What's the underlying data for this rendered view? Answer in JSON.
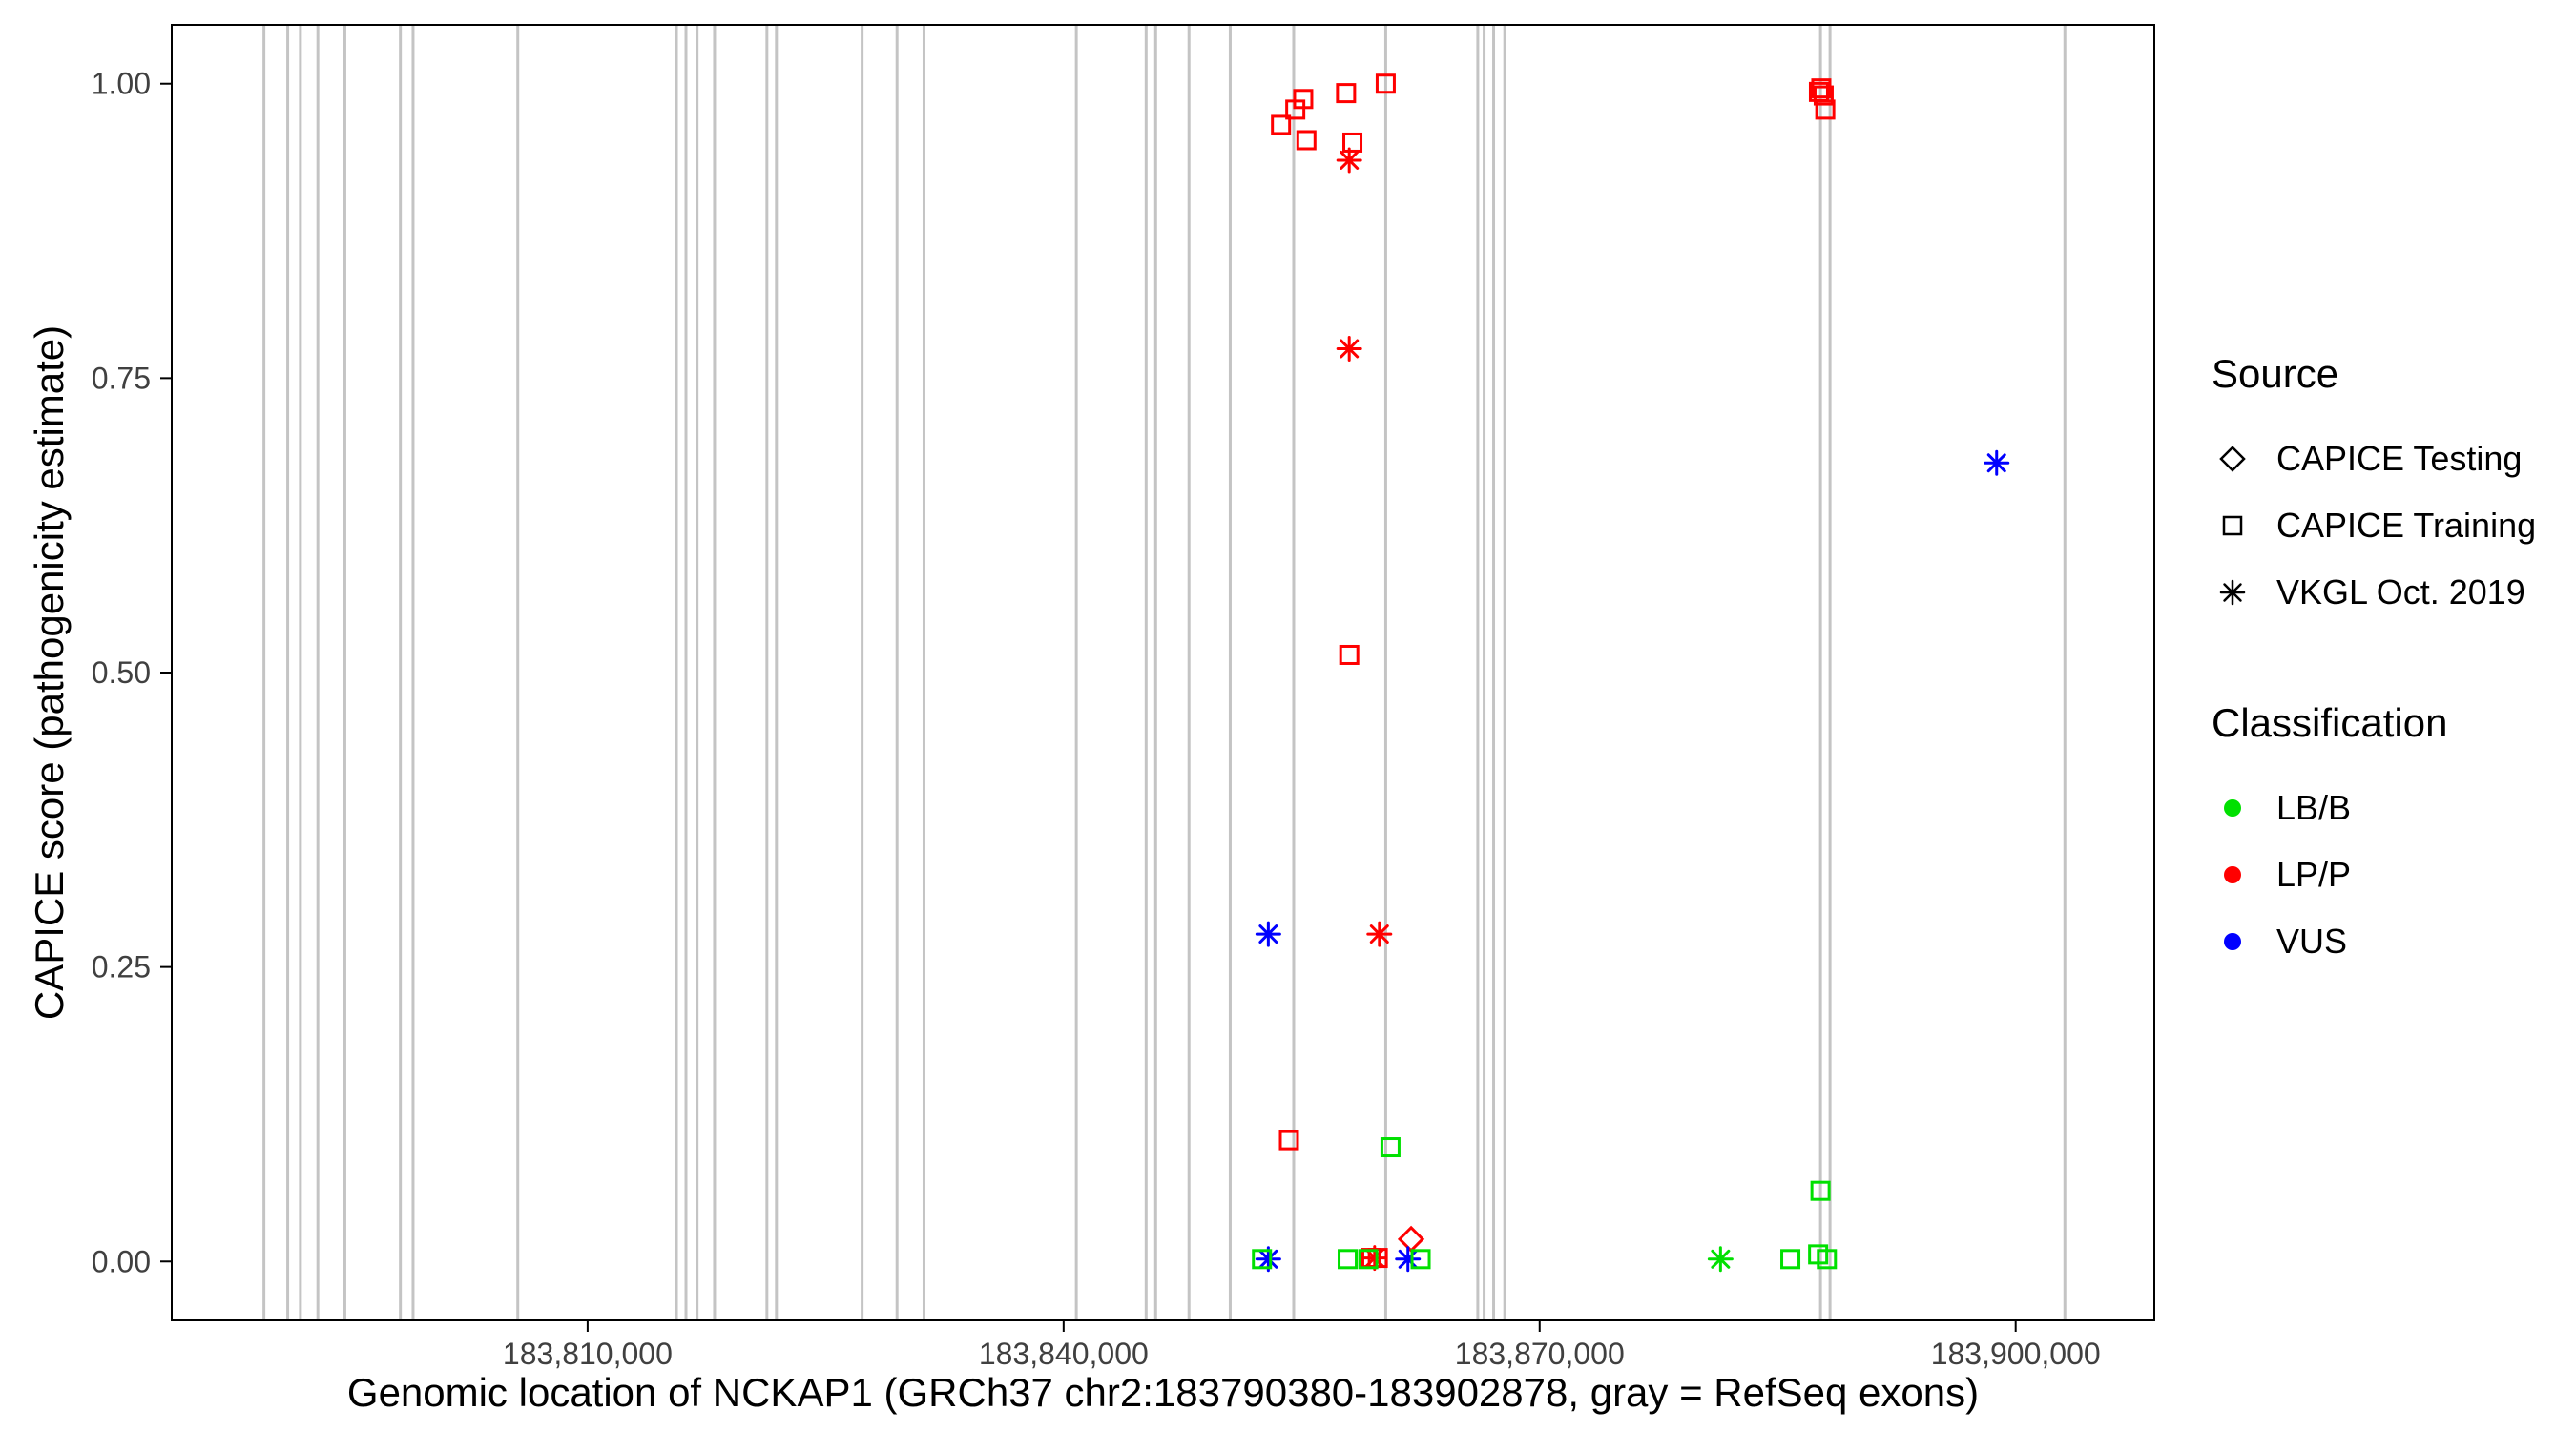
{
  "legend": {
    "source_title": "Source",
    "source_items": [
      {
        "label": "CAPICE Testing",
        "shape": "diamond"
      },
      {
        "label": "CAPICE Training",
        "shape": "square"
      },
      {
        "label": "VKGL Oct. 2019",
        "shape": "asterisk"
      }
    ],
    "classification_title": "Classification",
    "classification_items": [
      {
        "label": "LB/B",
        "color": "#00E000"
      },
      {
        "label": "LP/P",
        "color": "#FF0000"
      },
      {
        "label": "VUS",
        "color": "#0000FF"
      }
    ]
  },
  "chart_data": {
    "type": "scatter",
    "title": "",
    "xlabel": "Genomic location of NCKAP1 (GRCh37 chr2:183790380-183902878, gray = RefSeq exons)",
    "ylabel": "CAPICE score (pathogenicity estimate)",
    "xlim": [
      183783790,
      183908737
    ],
    "ylim": [
      -0.05,
      1.05
    ],
    "grid": false,
    "x_ticks": [
      {
        "value": 183810000,
        "label": "183,810,000"
      },
      {
        "value": 183840000,
        "label": "183,840,000"
      },
      {
        "value": 183870000,
        "label": "183,870,000"
      },
      {
        "value": 183900000,
        "label": "183,900,000"
      }
    ],
    "y_ticks": [
      {
        "value": 0.0,
        "label": "0.00"
      },
      {
        "value": 0.25,
        "label": "0.25"
      },
      {
        "value": 0.5,
        "label": "0.50"
      },
      {
        "value": 0.75,
        "label": "0.75"
      },
      {
        "value": 1.0,
        "label": "1.00"
      }
    ],
    "exon_color": "#C4C4C4",
    "exon_note": "gray vertical lines = RefSeq exons",
    "exons_x": [
      183789600,
      183791100,
      183791900,
      183793000,
      183794700,
      183798200,
      183799000,
      183805600,
      183815600,
      183816200,
      183816900,
      183818000,
      183821300,
      183821900,
      183827300,
      183829500,
      183831200,
      183840800,
      183845200,
      183845800,
      183847900,
      183850500,
      183854500,
      183860300,
      183866100,
      183866500,
      183867100,
      183867800,
      183887700,
      183888300,
      183903100
    ],
    "colors": {
      "LB/B": "#00E000",
      "LP/P": "#FF0000",
      "VUS": "#0000FF"
    },
    "shapes": {
      "CAPICE Testing": "diamond",
      "CAPICE Training": "square",
      "VKGL Oct. 2019": "asterisk"
    },
    "points": [
      {
        "x": 183853700,
        "y": 0.965,
        "source": "CAPICE Training",
        "classification": "LP/P"
      },
      {
        "x": 183854600,
        "y": 0.978,
        "source": "CAPICE Training",
        "classification": "LP/P"
      },
      {
        "x": 183855100,
        "y": 0.987,
        "source": "CAPICE Training",
        "classification": "LP/P"
      },
      {
        "x": 183855300,
        "y": 0.952,
        "source": "CAPICE Training",
        "classification": "LP/P"
      },
      {
        "x": 183857800,
        "y": 0.992,
        "source": "CAPICE Training",
        "classification": "LP/P"
      },
      {
        "x": 183858200,
        "y": 0.95,
        "source": "CAPICE Training",
        "classification": "LP/P"
      },
      {
        "x": 183860300,
        "y": 1.0,
        "source": "CAPICE Training",
        "classification": "LP/P"
      },
      {
        "x": 183858000,
        "y": 0.515,
        "source": "CAPICE Training",
        "classification": "LP/P"
      },
      {
        "x": 183854200,
        "y": 0.103,
        "source": "CAPICE Training",
        "classification": "LP/P"
      },
      {
        "x": 183859400,
        "y": 0.003,
        "source": "CAPICE Training",
        "classification": "LP/P"
      },
      {
        "x": 183859800,
        "y": 0.003,
        "source": "CAPICE Training",
        "classification": "LP/P"
      },
      {
        "x": 183887600,
        "y": 0.993,
        "source": "CAPICE Training",
        "classification": "LP/P"
      },
      {
        "x": 183887750,
        "y": 0.996,
        "source": "CAPICE Training",
        "classification": "LP/P"
      },
      {
        "x": 183887900,
        "y": 0.99,
        "source": "CAPICE Training",
        "classification": "LP/P"
      },
      {
        "x": 183888000,
        "y": 0.978,
        "source": "CAPICE Training",
        "classification": "LP/P"
      },
      {
        "x": 183858000,
        "y": 0.935,
        "source": "VKGL Oct. 2019",
        "classification": "LP/P"
      },
      {
        "x": 183858000,
        "y": 0.775,
        "source": "VKGL Oct. 2019",
        "classification": "LP/P"
      },
      {
        "x": 183859900,
        "y": 0.278,
        "source": "VKGL Oct. 2019",
        "classification": "LP/P"
      },
      {
        "x": 183859600,
        "y": 0.003,
        "source": "VKGL Oct. 2019",
        "classification": "LP/P"
      },
      {
        "x": 183861900,
        "y": 0.019,
        "source": "CAPICE Testing",
        "classification": "LP/P"
      },
      {
        "x": 183852900,
        "y": 0.278,
        "source": "VKGL Oct. 2019",
        "classification": "VUS"
      },
      {
        "x": 183852900,
        "y": 0.002,
        "source": "VKGL Oct. 2019",
        "classification": "VUS"
      },
      {
        "x": 183861700,
        "y": 0.002,
        "source": "VKGL Oct. 2019",
        "classification": "VUS"
      },
      {
        "x": 183898800,
        "y": 0.678,
        "source": "VKGL Oct. 2019",
        "classification": "VUS"
      },
      {
        "x": 183852500,
        "y": 0.002,
        "source": "CAPICE Training",
        "classification": "LB/B"
      },
      {
        "x": 183857900,
        "y": 0.002,
        "source": "CAPICE Training",
        "classification": "LB/B"
      },
      {
        "x": 183859200,
        "y": 0.002,
        "source": "CAPICE Training",
        "classification": "LB/B"
      },
      {
        "x": 183862500,
        "y": 0.002,
        "source": "CAPICE Training",
        "classification": "LB/B"
      },
      {
        "x": 183860600,
        "y": 0.097,
        "source": "CAPICE Training",
        "classification": "LB/B"
      },
      {
        "x": 183885800,
        "y": 0.002,
        "source": "CAPICE Training",
        "classification": "LB/B"
      },
      {
        "x": 183887700,
        "y": 0.06,
        "source": "CAPICE Training",
        "classification": "LB/B"
      },
      {
        "x": 183887550,
        "y": 0.006,
        "source": "CAPICE Training",
        "classification": "LB/B"
      },
      {
        "x": 183888100,
        "y": 0.002,
        "source": "CAPICE Training",
        "classification": "LB/B"
      },
      {
        "x": 183881400,
        "y": 0.002,
        "source": "VKGL Oct. 2019",
        "classification": "LB/B"
      }
    ]
  }
}
